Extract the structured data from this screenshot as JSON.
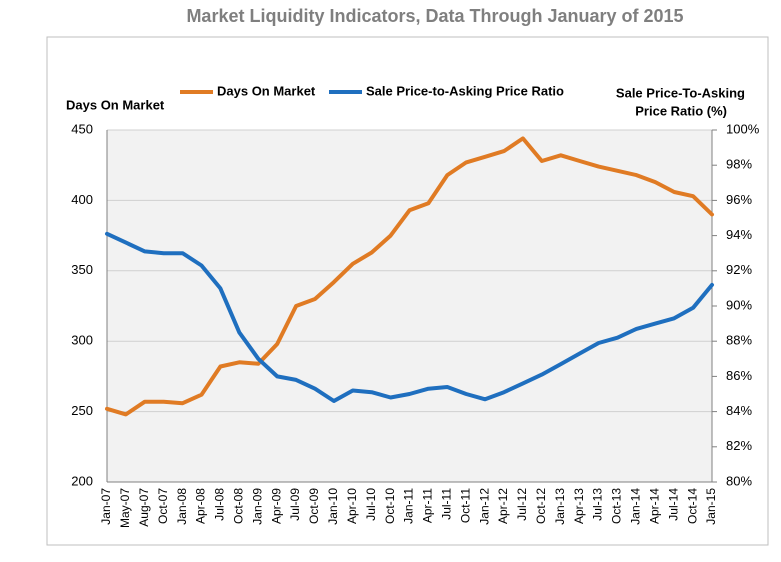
{
  "chart_data": {
    "type": "line",
    "title": "Market Liquidity Indicators, Data Through January of 2015",
    "y_label": "Days On Market",
    "y2_label": [
      "Sale Price-To-Asking",
      "Price Ratio (%)"
    ],
    "categories": [
      "Jan-07",
      "May-07",
      "Aug-07",
      "Oct-07",
      "Jan-08",
      "Apr-08",
      "Jul-08",
      "Oct-08",
      "Jan-09",
      "Apr-09",
      "Jul-09",
      "Oct-09",
      "Jan-10",
      "Apr-10",
      "Jul-10",
      "Oct-10",
      "Jan-11",
      "Apr-11",
      "Jul-11",
      "Oct-11",
      "Jan-12",
      "Apr-12",
      "Jul-12",
      "Oct-12",
      "Jan-13",
      "Apr-13",
      "Jul-13",
      "Oct-13",
      "Jan-14",
      "Apr-14",
      "Jul-14",
      "Oct-14",
      "Jan-15"
    ],
    "series": [
      {
        "name": "Days On Market",
        "color": "#e07b24",
        "values": [
          252,
          248,
          257,
          257,
          256,
          262,
          282,
          285,
          284,
          298,
          325,
          330,
          342,
          355,
          363,
          375,
          393,
          398,
          418,
          427,
          431,
          435,
          444,
          428,
          432,
          428,
          424,
          421,
          418,
          413,
          406,
          403,
          390
        ]
      },
      {
        "name": "Sale Price-to-Asking Price Ratio",
        "color": "#1f6fbf",
        "axis": "y2",
        "values": [
          94.1,
          93.6,
          93.1,
          93.0,
          93.0,
          92.3,
          91.0,
          88.5,
          87.0,
          86.0,
          85.8,
          85.3,
          84.6,
          85.2,
          85.1,
          84.8,
          85.0,
          85.3,
          85.4,
          85.0,
          84.7,
          85.1,
          85.6,
          86.1,
          86.7,
          87.3,
          87.9,
          88.2,
          88.7,
          89.0,
          89.3,
          89.9,
          91.2
        ]
      }
    ],
    "ylim": [
      200,
      450
    ],
    "yticks": [
      200,
      250,
      300,
      350,
      400,
      450
    ],
    "y2lim": [
      80,
      100
    ],
    "y2ticks": [
      {
        "value": 80,
        "label": "80%"
      },
      {
        "value": 82,
        "label": "82%"
      },
      {
        "value": 84,
        "label": "84%"
      },
      {
        "value": 86,
        "label": "86%"
      },
      {
        "value": 88,
        "label": "88%"
      },
      {
        "value": 90,
        "label": "90%"
      },
      {
        "value": 92,
        "label": "92%"
      },
      {
        "value": 94,
        "label": "94%"
      },
      {
        "value": 96,
        "label": "96%"
      },
      {
        "value": 98,
        "label": "98%"
      },
      {
        "value": 100,
        "label": "100%"
      }
    ],
    "grid": true,
    "legend": "top"
  }
}
